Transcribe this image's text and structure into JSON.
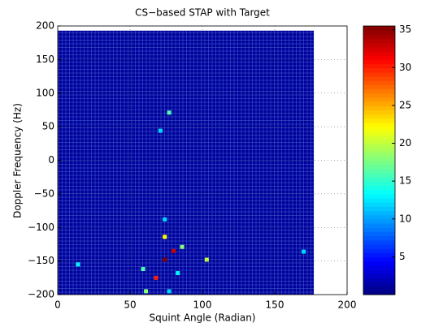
{
  "chart_data": {
    "type": "heatmap",
    "title": "CS−based STAP with Target",
    "x_label": "Squint Angle (Radian)",
    "y_label": "Doppler Frequency (Hz)",
    "xlim": [
      0,
      200
    ],
    "xticks": [
      0,
      50,
      100,
      150,
      200
    ],
    "ylim": [
      -200,
      200
    ],
    "yticks": [
      {
        "value": -200,
        "label": "−200"
      },
      {
        "value": -150,
        "label": "−150"
      },
      {
        "value": -100,
        "label": "−100"
      },
      {
        "value": -50,
        "label": "−50"
      },
      0,
      50,
      100,
      150,
      200
    ],
    "image_x_extent": [
      0,
      177
    ],
    "image_y_extent": [
      -200,
      193
    ],
    "background_value": 1,
    "points": {
      "x": [
        77,
        71,
        74,
        74,
        86,
        80,
        74,
        103,
        170,
        14,
        59,
        68,
        83,
        61,
        77
      ],
      "y": [
        71,
        44,
        -88,
        -114,
        -129,
        -135,
        -148,
        -148,
        -136,
        -155,
        -162,
        -175,
        -168,
        -195,
        -195
      ],
      "values": [
        16,
        12,
        12,
        22,
        18,
        33,
        36,
        20,
        12,
        13,
        16,
        30,
        13,
        18,
        12
      ]
    },
    "colormap": "jet",
    "clim": [
      0,
      35.5
    ],
    "colorbar_ticks": [
      5,
      10,
      15,
      20,
      25,
      30,
      35
    ],
    "grid": true
  }
}
